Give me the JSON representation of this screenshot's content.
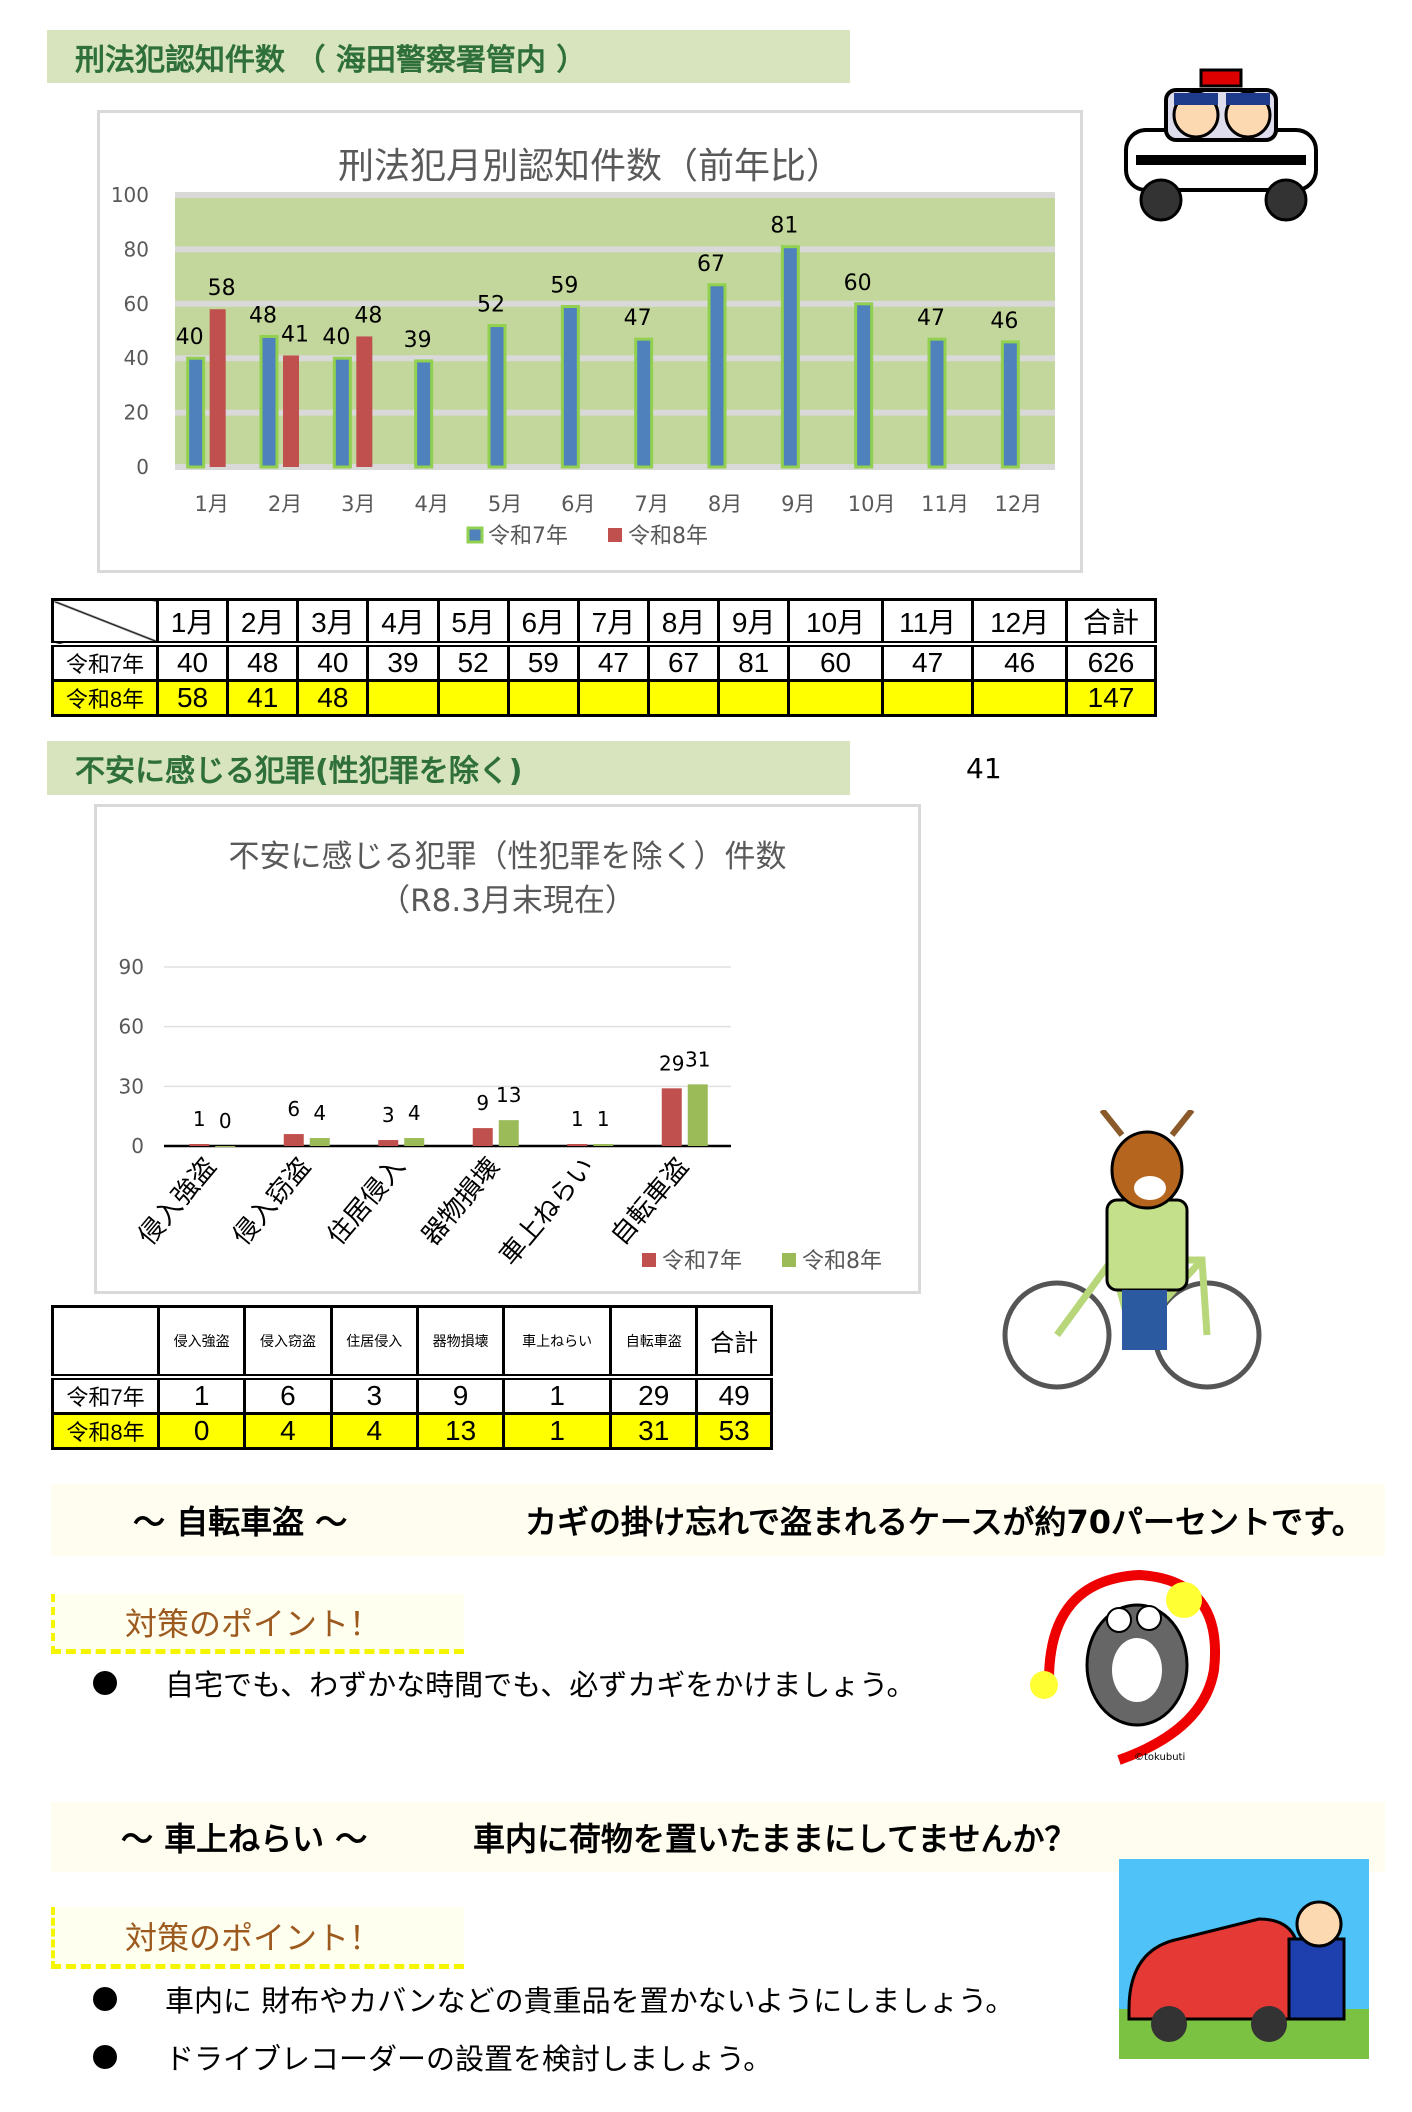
{
  "section1": {
    "header": "刑法犯認知件数 （ 海田警察署管内 ）"
  },
  "chart1": {
    "chart_data": {
      "type": "bar",
      "title": "刑法犯月別認知件数（前年比）",
      "categories": [
        "1月",
        "2月",
        "3月",
        "4月",
        "5月",
        "6月",
        "7月",
        "8月",
        "9月",
        "10月",
        "11月",
        "12月"
      ],
      "series": [
        {
          "name": "令和7年",
          "values": [
            40,
            48,
            40,
            39,
            52,
            59,
            47,
            67,
            81,
            60,
            47,
            46
          ],
          "color": "#4f81bd"
        },
        {
          "name": "令和8年",
          "values": [
            58,
            41,
            48,
            null,
            null,
            null,
            null,
            null,
            null,
            null,
            null,
            null
          ],
          "color": "#c0504d"
        }
      ],
      "ylim": [
        0,
        100
      ],
      "yticks": [
        0,
        20,
        40,
        60,
        80,
        100
      ],
      "grid": true,
      "plot_bg": "#c3d69b",
      "legend": "bottom"
    }
  },
  "table1": {
    "headers": [
      "1月",
      "2月",
      "3月",
      "4月",
      "5月",
      "6月",
      "7月",
      "8月",
      "9月",
      "10月",
      "11月",
      "12月",
      "合計"
    ],
    "rows": [
      {
        "label": "令和7年",
        "values": [
          "40",
          "48",
          "40",
          "39",
          "52",
          "59",
          "47",
          "67",
          "81",
          "60",
          "47",
          "46",
          "626"
        ]
      },
      {
        "label": "令和8年",
        "values": [
          "58",
          "41",
          "48",
          "",
          "",
          "",
          "",
          "",
          "",
          "",
          "",
          "",
          "147"
        ]
      }
    ]
  },
  "section2": {
    "header": "不安に感じる犯罪(性犯罪を除く)",
    "note": "41"
  },
  "chart2": {
    "chart_data": {
      "type": "bar",
      "title": "不安に感じる犯罪（性犯罪を除く）件数",
      "subtitle": "（R8.3月末現在）",
      "categories": [
        "侵入強盗",
        "侵入窃盗",
        "住居侵入",
        "器物損壊",
        "車上ねらい",
        "自転車盗"
      ],
      "series": [
        {
          "name": "令和7年",
          "values": [
            1,
            6,
            3,
            9,
            1,
            29
          ],
          "color": "#c0504d"
        },
        {
          "name": "令和8年",
          "values": [
            0,
            4,
            4,
            13,
            1,
            31
          ],
          "color": "#9bbb59"
        }
      ],
      "ylim": [
        0,
        90
      ],
      "yticks": [
        0,
        30,
        60,
        90
      ],
      "grid": true,
      "legend": "bottom-right"
    }
  },
  "table2": {
    "headers": [
      "侵入強盗",
      "侵入窃盗",
      "住居侵入",
      "器物損壊",
      "車上ねらい",
      "自転車盗",
      "合計"
    ],
    "rows": [
      {
        "label": "令和7年",
        "values": [
          "1",
          "6",
          "3",
          "9",
          "1",
          "29",
          "49"
        ]
      },
      {
        "label": "令和8年",
        "values": [
          "0",
          "4",
          "4",
          "13",
          "1",
          "31",
          "53"
        ]
      }
    ]
  },
  "bicycle": {
    "title": "～ 自転車盗 ～",
    "message": "カギの掛け忘れで盗まれるケースが約70パーセントです。",
    "point_label": "対策のポイント！",
    "bullets": [
      "自宅でも、わずかな時間でも、必ずカギをかけましょう。"
    ],
    "illustration_credit": "©tokubuti"
  },
  "car": {
    "title": "～ 車上ねらい ～",
    "message": "車内に荷物を置いたままにしてませんか？",
    "point_label": "対策のポイント！",
    "bullets": [
      "車内に 財布やカバンなどの貴重品を置かないようにしましょう。",
      "ドライブレコーダーの設置を検討しましょう。"
    ]
  }
}
